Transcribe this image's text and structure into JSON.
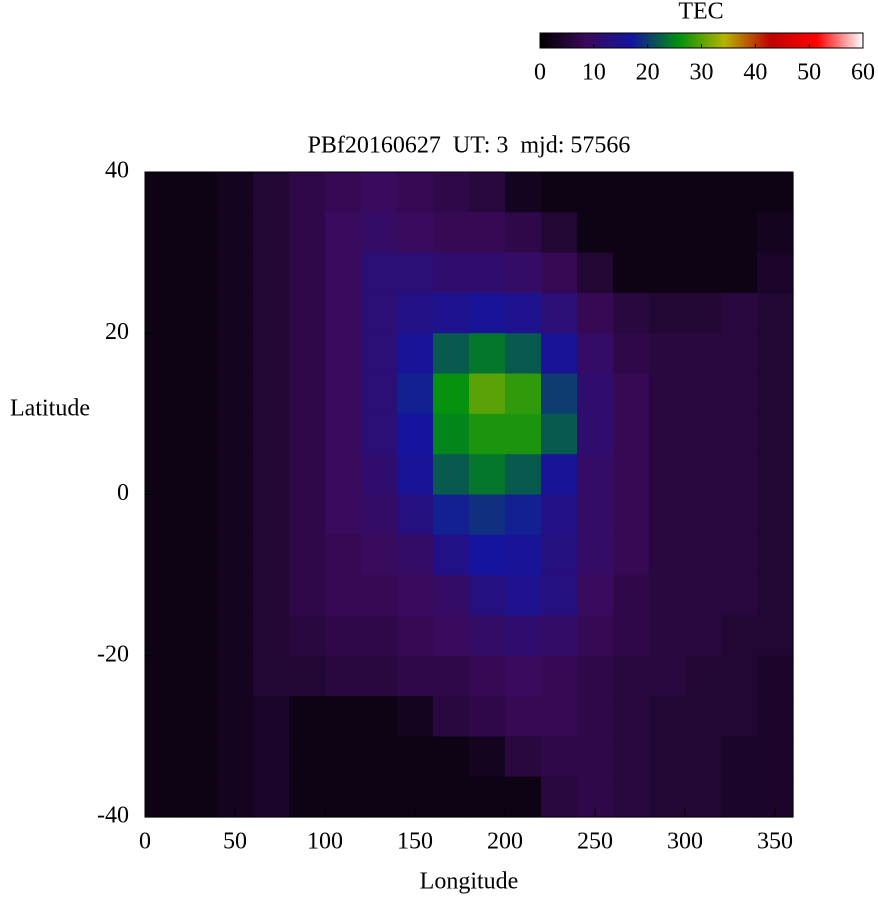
{
  "chart_data": {
    "type": "heatmap",
    "title": "PBf20160627  UT: 3  mjd: 57566",
    "xlabel": "Longitude",
    "ylabel": "Latitude",
    "colorbar_label": "TEC",
    "xlim": [
      0,
      360
    ],
    "xticks": [
      0,
      50,
      100,
      150,
      200,
      250,
      300,
      350
    ],
    "ylim": [
      -40,
      40
    ],
    "yticks": [
      -40,
      -20,
      0,
      20,
      40
    ],
    "zlim": [
      0,
      60
    ],
    "zticks": [
      0,
      10,
      20,
      30,
      40,
      50,
      60
    ],
    "colors": [
      "#000000",
      "#3a0a5a",
      "#1414a0",
      "#009010",
      "#b4b400",
      "#c00000",
      "#ff0000",
      "#ffffff"
    ],
    "x": [
      10,
      30,
      50,
      70,
      90,
      110,
      130,
      150,
      170,
      190,
      210,
      230,
      250,
      270,
      290,
      310,
      330,
      350
    ],
    "y": [
      37.5,
      32.5,
      27.5,
      22.5,
      17.5,
      12.5,
      7.5,
      2.5,
      -2.5,
      -7.5,
      -12.5,
      -17.5,
      -22.5,
      -27.5,
      -32.5,
      -37.5
    ],
    "z": [
      [
        2,
        2,
        3,
        5,
        7,
        8,
        9,
        8,
        7,
        6,
        3,
        2,
        2,
        2,
        2,
        2,
        2,
        2
      ],
      [
        2,
        2,
        3,
        5,
        7,
        9,
        10,
        9,
        8,
        8,
        7,
        5,
        2,
        2,
        2,
        2,
        2,
        3
      ],
      [
        2,
        2,
        3,
        5,
        7,
        9,
        12,
        12,
        11,
        11,
        10,
        8,
        5,
        2,
        2,
        2,
        2,
        4
      ],
      [
        2,
        2,
        3,
        5,
        7,
        9,
        12,
        14,
        15,
        16,
        15,
        12,
        8,
        6,
        5,
        5,
        6,
        5
      ],
      [
        2,
        2,
        3,
        5,
        7,
        9,
        12,
        16,
        22,
        24,
        22,
        16,
        10,
        7,
        6,
        6,
        6,
        5
      ],
      [
        2,
        2,
        3,
        5,
        7,
        9,
        12,
        18,
        26,
        30,
        28,
        20,
        11,
        8,
        6,
        6,
        6,
        5
      ],
      [
        2,
        2,
        3,
        5,
        7,
        9,
        12,
        17,
        25,
        27,
        27,
        22,
        11,
        8,
        6,
        6,
        6,
        5
      ],
      [
        2,
        2,
        3,
        5,
        7,
        9,
        11,
        16,
        22,
        24,
        22,
        16,
        10,
        8,
        6,
        6,
        6,
        5
      ],
      [
        2,
        2,
        3,
        5,
        7,
        9,
        10,
        13,
        18,
        19,
        18,
        14,
        10,
        8,
        6,
        6,
        6,
        5
      ],
      [
        2,
        2,
        3,
        5,
        7,
        8,
        9,
        10,
        14,
        17,
        16,
        13,
        10,
        8,
        6,
        6,
        6,
        5
      ],
      [
        2,
        2,
        3,
        5,
        7,
        8,
        8,
        9,
        10,
        13,
        15,
        13,
        9,
        7,
        6,
        6,
        6,
        5
      ],
      [
        2,
        2,
        3,
        5,
        6,
        7,
        7,
        8,
        9,
        10,
        11,
        10,
        8,
        7,
        6,
        6,
        5,
        5
      ],
      [
        2,
        2,
        3,
        5,
        5,
        6,
        6,
        7,
        7,
        8,
        9,
        8,
        7,
        6,
        6,
        5,
        5,
        4
      ],
      [
        2,
        2,
        3,
        4,
        2,
        2,
        2,
        3,
        6,
        7,
        8,
        8,
        7,
        6,
        5,
        5,
        5,
        4
      ],
      [
        2,
        2,
        3,
        4,
        2,
        2,
        2,
        2,
        2,
        3,
        6,
        7,
        7,
        6,
        5,
        5,
        4,
        4
      ],
      [
        2,
        2,
        3,
        4,
        2,
        2,
        2,
        2,
        2,
        2,
        2,
        6,
        7,
        6,
        5,
        5,
        4,
        4
      ]
    ]
  }
}
